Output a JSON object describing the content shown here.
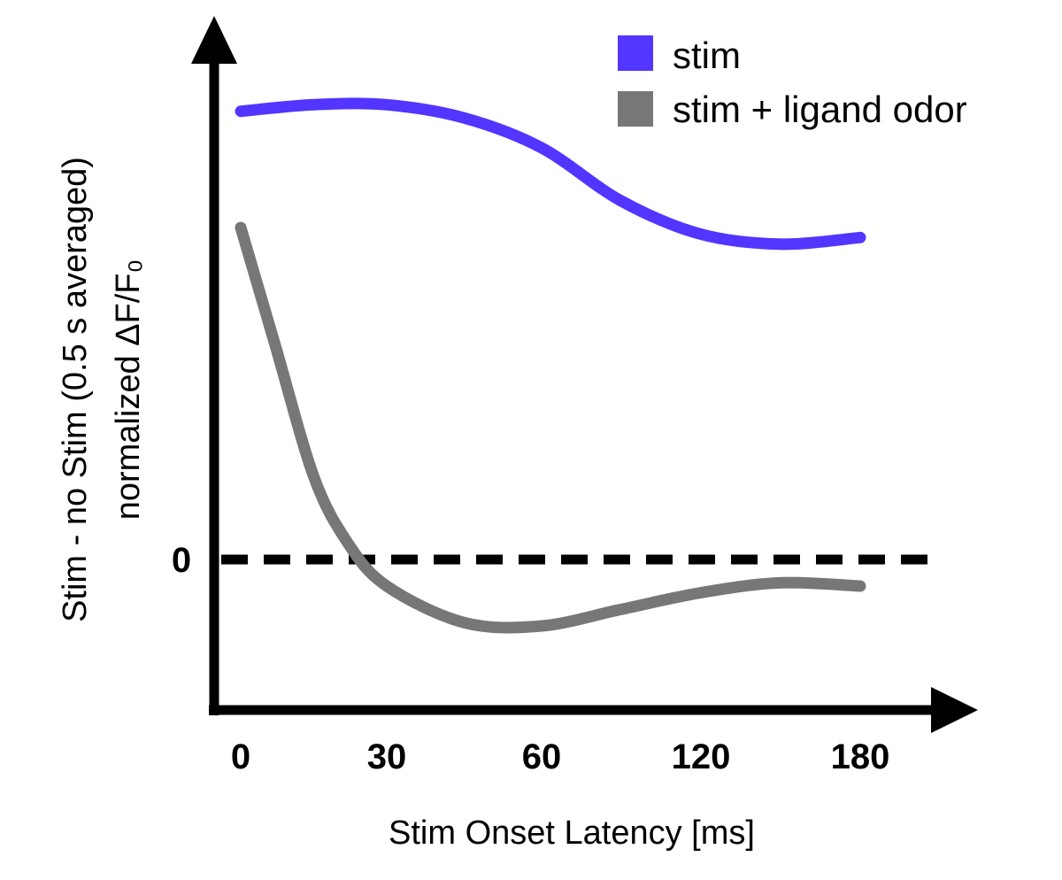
{
  "chart_data": {
    "type": "line",
    "title": "",
    "xlabel": "Stim Onset Latency [ms]",
    "ylabel_line1": "Stim - no Stim (0.5 s averaged)",
    "ylabel_line2": "normalized ΔF/F₀",
    "x_ticks": [
      "0",
      "30",
      "60",
      "120",
      "180"
    ],
    "y_ticks": [
      "0"
    ],
    "zero_reference_line": "dashed",
    "grid": false,
    "legend_position": "top-right",
    "series": [
      {
        "name": "stim",
        "color": "#5236ff",
        "x": [
          0,
          15,
          30,
          45,
          60,
          90,
          120,
          150,
          180
        ],
        "y": [
          1.35,
          1.37,
          1.37,
          1.33,
          1.24,
          1.08,
          0.98,
          0.95,
          0.97
        ]
      },
      {
        "name": "stim + ligand odor",
        "color": "#777777",
        "x": [
          0,
          7,
          15,
          22,
          30,
          45,
          60,
          90,
          120,
          150,
          180
        ],
        "y": [
          1.0,
          0.65,
          0.25,
          0.05,
          -0.08,
          -0.19,
          -0.2,
          -0.15,
          -0.1,
          -0.07,
          -0.08
        ]
      }
    ]
  }
}
